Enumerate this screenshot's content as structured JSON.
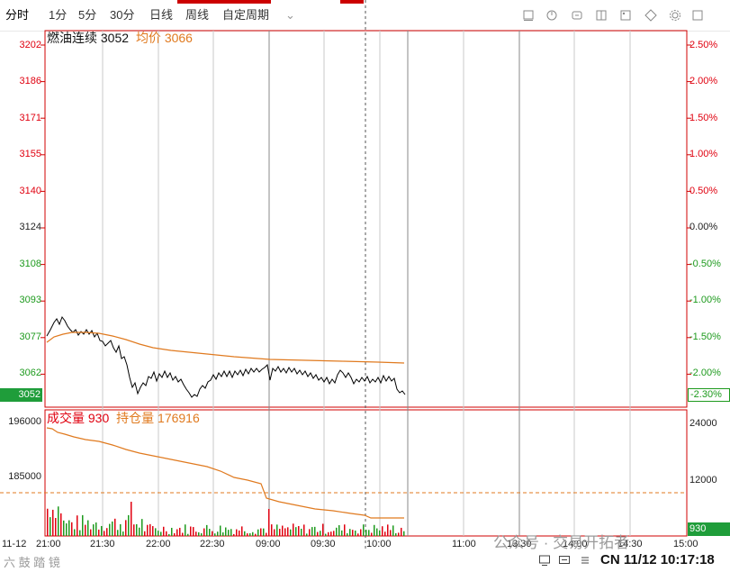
{
  "toolbar": {
    "tabs": [
      "分时",
      "1分",
      "5分",
      "30分",
      "日线",
      "周线",
      "自定周期"
    ],
    "icons": [
      "window-icon",
      "drawing-icon",
      "sync-icon",
      "layout-icon",
      "image-icon",
      "screenshot-icon",
      "settings-icon",
      "maximize-icon"
    ]
  },
  "main_legend": {
    "name": "燃油连续",
    "price": "3052",
    "avg_label": "均价",
    "avg_value": "3066"
  },
  "vol_legend": {
    "vol_label": "成交量",
    "vol_value": "930",
    "oi_label": "持仓量",
    "oi_value": "176916"
  },
  "price_axis": [
    "3202",
    "3186",
    "3171",
    "3155",
    "3140",
    "3124",
    "3108",
    "3093",
    "3077",
    "3062"
  ],
  "pct_axis": [
    "2.50%",
    "2.00%",
    "1.50%",
    "1.00%",
    "0.50%",
    "0.00%",
    "-0.50%",
    "-1.00%",
    "-1.50%",
    "-2.00%"
  ],
  "current_price_box": "3052",
  "current_pct_box": "-2.30%",
  "vol_axis_left": [
    "196000",
    "185000"
  ],
  "vol_axis_right": [
    "24000",
    "12000"
  ],
  "current_vol_box": "930",
  "x_axis": [
    "11-12",
    "21:00",
    "21:30",
    "22:00",
    "22:30",
    "09:00",
    "09:30",
    "10:00",
    "11:00",
    "13:30",
    "14:00",
    "14:30",
    "15:00"
  ],
  "footer": {
    "watermark_left": "六 鼓 踏 镜",
    "watermark_right": "公众号 · 交易开拓者",
    "clock": "CN 11/12 10:17:18"
  },
  "colors": {
    "up": "#e0000f",
    "down": "#1d9a1d",
    "avg_line": "#e07a1f",
    "price_line": "#000000",
    "grid": "#c8c8c8",
    "axis_red": "#d00000"
  },
  "chart_data": {
    "type": "line",
    "price_range": [
      3046,
      3202
    ],
    "base_price": 3124,
    "x_session_labels": [
      "21:00",
      "21:30",
      "22:00",
      "22:30",
      "09:00",
      "09:30",
      "10:00",
      "11:00",
      "13:30",
      "14:00",
      "14:30",
      "15:00"
    ],
    "series": [
      {
        "name": "燃油连续",
        "last": 3052
      },
      {
        "name": "均价",
        "last": 3066
      }
    ],
    "volume": {
      "last": 930,
      "open_interest_last": 176916
    }
  }
}
